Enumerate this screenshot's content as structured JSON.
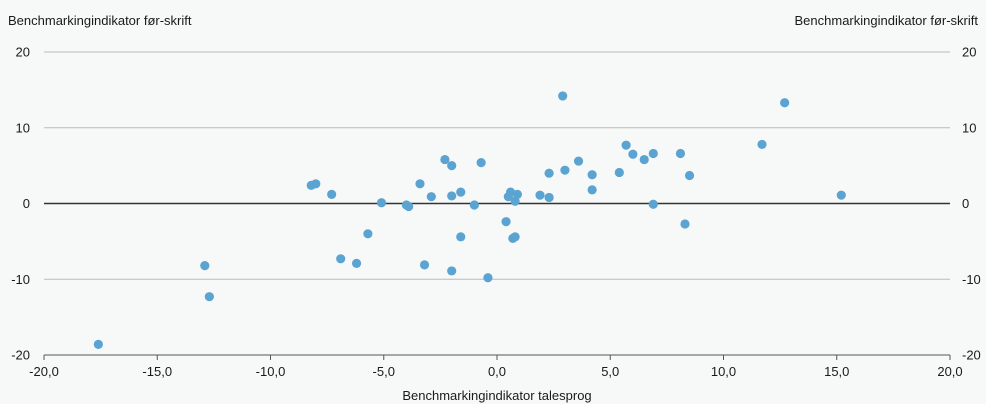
{
  "chart_data": {
    "type": "scatter",
    "ylabel_left": "Benchmarkingindikator før-skrift",
    "ylabel_right": "Benchmarkingindikator før-skrift",
    "xlabel": "Benchmarkingindikator talesprog",
    "xlim": [
      -20,
      20
    ],
    "ylim": [
      -20,
      20
    ],
    "xticks": [
      "-20,0",
      "-15,0",
      "-10,0",
      "-5,0",
      "0,0",
      "5,0",
      "10,0",
      "15,0",
      "20,0"
    ],
    "yticks": [
      "20",
      "10",
      "0",
      "-10",
      "-20"
    ],
    "grid": "horizontal",
    "point_color": "#5ba4d2",
    "points": [
      {
        "x": -17.6,
        "y": -18.6
      },
      {
        "x": -12.9,
        "y": -8.2
      },
      {
        "x": -12.7,
        "y": -12.3
      },
      {
        "x": -8.2,
        "y": 2.4
      },
      {
        "x": -8.0,
        "y": 2.6
      },
      {
        "x": -7.3,
        "y": 1.2
      },
      {
        "x": -6.9,
        "y": -7.3
      },
      {
        "x": -6.2,
        "y": -7.9
      },
      {
        "x": -5.7,
        "y": -4.0
      },
      {
        "x": -5.1,
        "y": 0.1
      },
      {
        "x": -4.0,
        "y": -0.2
      },
      {
        "x": -3.9,
        "y": -0.4
      },
      {
        "x": -3.4,
        "y": 2.6
      },
      {
        "x": -3.2,
        "y": -8.1
      },
      {
        "x": -2.9,
        "y": 0.9
      },
      {
        "x": -2.3,
        "y": 5.8
      },
      {
        "x": -2.0,
        "y": 5.0
      },
      {
        "x": -2.0,
        "y": 1.0
      },
      {
        "x": -2.0,
        "y": -8.9
      },
      {
        "x": -1.6,
        "y": 1.5
      },
      {
        "x": -1.6,
        "y": -4.4
      },
      {
        "x": -1.0,
        "y": -0.2
      },
      {
        "x": -0.7,
        "y": 5.4
      },
      {
        "x": -0.4,
        "y": -9.8
      },
      {
        "x": 0.4,
        "y": -2.4
      },
      {
        "x": 0.5,
        "y": 0.9
      },
      {
        "x": 0.6,
        "y": 1.5
      },
      {
        "x": 0.7,
        "y": -4.6
      },
      {
        "x": 0.8,
        "y": -4.4
      },
      {
        "x": 0.8,
        "y": 0.3
      },
      {
        "x": 0.9,
        "y": 1.2
      },
      {
        "x": 1.9,
        "y": 1.1
      },
      {
        "x": 2.3,
        "y": 4.0
      },
      {
        "x": 2.3,
        "y": 0.8
      },
      {
        "x": 2.9,
        "y": 14.2
      },
      {
        "x": 3.0,
        "y": 4.4
      },
      {
        "x": 3.6,
        "y": 5.6
      },
      {
        "x": 4.2,
        "y": 3.8
      },
      {
        "x": 4.2,
        "y": 1.8
      },
      {
        "x": 5.4,
        "y": 4.1
      },
      {
        "x": 5.7,
        "y": 7.7
      },
      {
        "x": 6.0,
        "y": 6.5
      },
      {
        "x": 6.5,
        "y": 5.8
      },
      {
        "x": 6.9,
        "y": 6.6
      },
      {
        "x": 6.9,
        "y": -0.1
      },
      {
        "x": 8.1,
        "y": 6.6
      },
      {
        "x": 8.3,
        "y": -2.7
      },
      {
        "x": 8.5,
        "y": 3.7
      },
      {
        "x": 11.7,
        "y": 7.8
      },
      {
        "x": 12.7,
        "y": 13.3
      },
      {
        "x": 15.2,
        "y": 1.1
      }
    ]
  }
}
